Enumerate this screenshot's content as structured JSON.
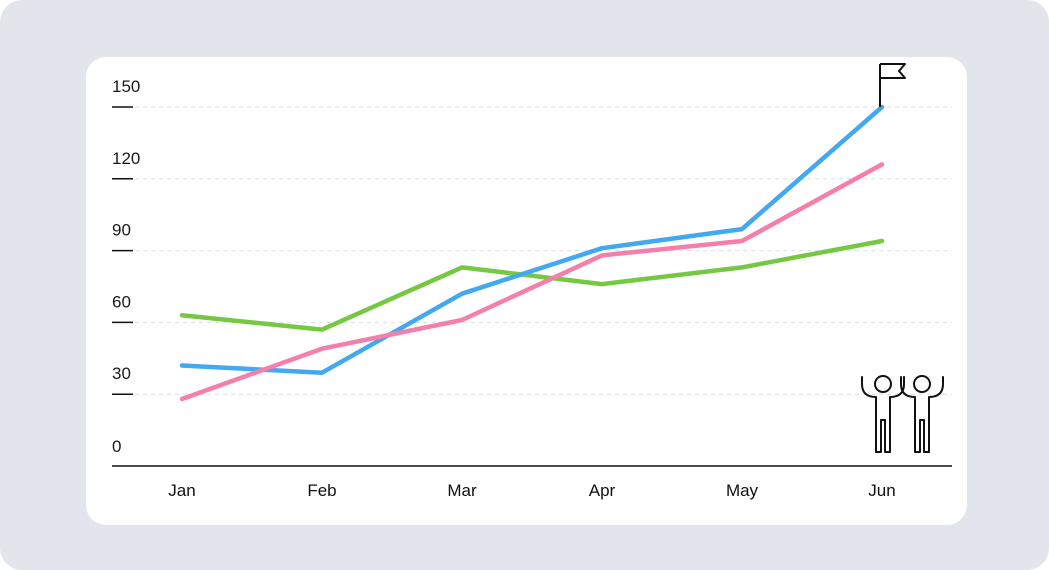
{
  "colors": {
    "background": "#e2e5ec",
    "card": "#ffffff",
    "grid": "#d9dde3",
    "axis": "#111111"
  },
  "chart_data": {
    "type": "line",
    "title": "",
    "xlabel": "",
    "ylabel": "",
    "categories": [
      "Jan",
      "Feb",
      "Mar",
      "Apr",
      "May",
      "Jun"
    ],
    "ylim": [
      0,
      150
    ],
    "yticks": [
      "0",
      "30",
      "60",
      "90",
      "120",
      "150"
    ],
    "grid": true,
    "legend": "none",
    "series": [
      {
        "color": "#76c843",
        "values": [
          63,
          57,
          83,
          76,
          83,
          94
        ]
      },
      {
        "color": "#42a8f0",
        "values": [
          42,
          39,
          72,
          91,
          99,
          150
        ]
      },
      {
        "color": "#f47fab",
        "values": [
          28,
          49,
          61,
          88,
          94,
          126
        ]
      }
    ]
  },
  "icons": {
    "flag": "flag-icon",
    "people": "celebrating-people-icon"
  }
}
